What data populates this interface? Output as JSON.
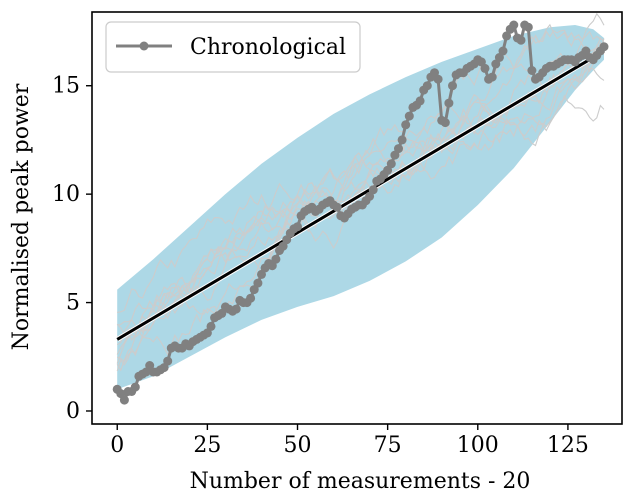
{
  "chart_data": {
    "type": "line",
    "xlabel": "Number of measurements - 20",
    "ylabel": "Normalised peak power",
    "xlim": [
      -7,
      140
    ],
    "ylim": [
      -0.6,
      18.4
    ],
    "x_ticks": [
      0,
      25,
      50,
      75,
      100,
      125
    ],
    "y_ticks": [
      0,
      5,
      10,
      15
    ],
    "grid": false,
    "legend": {
      "placement": "top-left",
      "entries": [
        "Chronological"
      ]
    },
    "colors": {
      "band": "#add8e6",
      "chronological": "#808080",
      "fit": "#000000",
      "light_traces": "#cccccc"
    },
    "band": {
      "x": [
        0,
        10,
        20,
        30,
        40,
        50,
        60,
        70,
        80,
        90,
        100,
        110,
        120,
        127,
        132,
        135
      ],
      "upper": [
        5.6,
        7.0,
        8.5,
        10.0,
        11.4,
        12.6,
        13.7,
        14.6,
        15.4,
        16.1,
        16.7,
        17.3,
        17.7,
        17.8,
        17.6,
        17.2
      ],
      "lower": [
        1.0,
        1.6,
        2.5,
        3.4,
        4.2,
        4.8,
        5.3,
        6.0,
        6.9,
        8.0,
        9.5,
        11.2,
        13.3,
        14.8,
        15.7,
        16.2
      ]
    },
    "fit_line": {
      "x": [
        0,
        135
      ],
      "y": [
        3.3,
        16.6
      ]
    },
    "series": [
      {
        "name": "Chronological",
        "x": [
          0,
          1,
          2,
          3,
          4,
          5,
          6,
          7,
          8,
          9,
          10,
          11,
          12,
          13,
          14,
          15,
          16,
          17,
          18,
          19,
          20,
          21,
          22,
          23,
          24,
          25,
          26,
          27,
          28,
          29,
          30,
          31,
          32,
          33,
          34,
          35,
          36,
          37,
          38,
          39,
          40,
          41,
          42,
          43,
          44,
          45,
          46,
          47,
          48,
          49,
          50,
          51,
          52,
          53,
          54,
          55,
          56,
          57,
          58,
          59,
          60,
          61,
          62,
          63,
          64,
          65,
          66,
          67,
          68,
          69,
          70,
          71,
          72,
          73,
          74,
          75,
          76,
          77,
          78,
          79,
          80,
          81,
          82,
          83,
          84,
          85,
          86,
          87,
          88,
          89,
          90,
          91,
          92,
          93,
          94,
          95,
          96,
          97,
          98,
          99,
          100,
          101,
          102,
          103,
          104,
          105,
          106,
          107,
          108,
          109,
          110,
          111,
          112,
          113,
          114,
          115,
          116,
          117,
          118,
          119,
          120,
          121,
          122,
          123,
          124,
          125,
          126,
          127,
          128,
          129,
          130,
          131,
          132,
          133,
          134,
          135
        ],
        "y": [
          1.0,
          0.8,
          0.5,
          0.9,
          0.9,
          1.1,
          1.6,
          1.7,
          1.8,
          2.1,
          1.8,
          1.8,
          1.9,
          2.0,
          2.3,
          2.9,
          3.0,
          2.9,
          2.9,
          3.1,
          3.0,
          3.2,
          3.3,
          3.4,
          3.5,
          3.6,
          3.9,
          4.3,
          4.4,
          4.5,
          4.8,
          4.7,
          4.6,
          4.7,
          5.1,
          5.0,
          5.0,
          5.2,
          5.6,
          5.9,
          6.3,
          6.6,
          6.8,
          6.7,
          7.0,
          7.4,
          7.6,
          7.9,
          8.2,
          8.4,
          8.5,
          9.0,
          9.2,
          9.3,
          9.4,
          9.2,
          9.3,
          9.5,
          9.6,
          9.7,
          9.5,
          9.4,
          9.0,
          8.9,
          9.1,
          9.3,
          9.4,
          9.5,
          9.5,
          9.7,
          9.9,
          10.2,
          10.6,
          10.7,
          10.9,
          11.1,
          11.4,
          11.8,
          12.1,
          12.5,
          13.2,
          13.6,
          14.0,
          14.1,
          14.3,
          14.8,
          15.0,
          15.4,
          15.6,
          15.3,
          13.4,
          13.3,
          14.2,
          15.0,
          15.5,
          15.6,
          15.6,
          15.8,
          15.9,
          16.0,
          16.2,
          16.1,
          15.8,
          15.3,
          15.4,
          16.0,
          16.3,
          16.6,
          17.3,
          17.6,
          17.8,
          17.2,
          17.1,
          17.8,
          17.7,
          15.7,
          15.3,
          15.4,
          15.6,
          15.8,
          15.9,
          15.9,
          16.0,
          16.1,
          16.2,
          16.2,
          16.2,
          16.1,
          16.3,
          16.4,
          16.6,
          16.3,
          16.2,
          16.4,
          16.6,
          16.8
        ]
      }
    ]
  }
}
